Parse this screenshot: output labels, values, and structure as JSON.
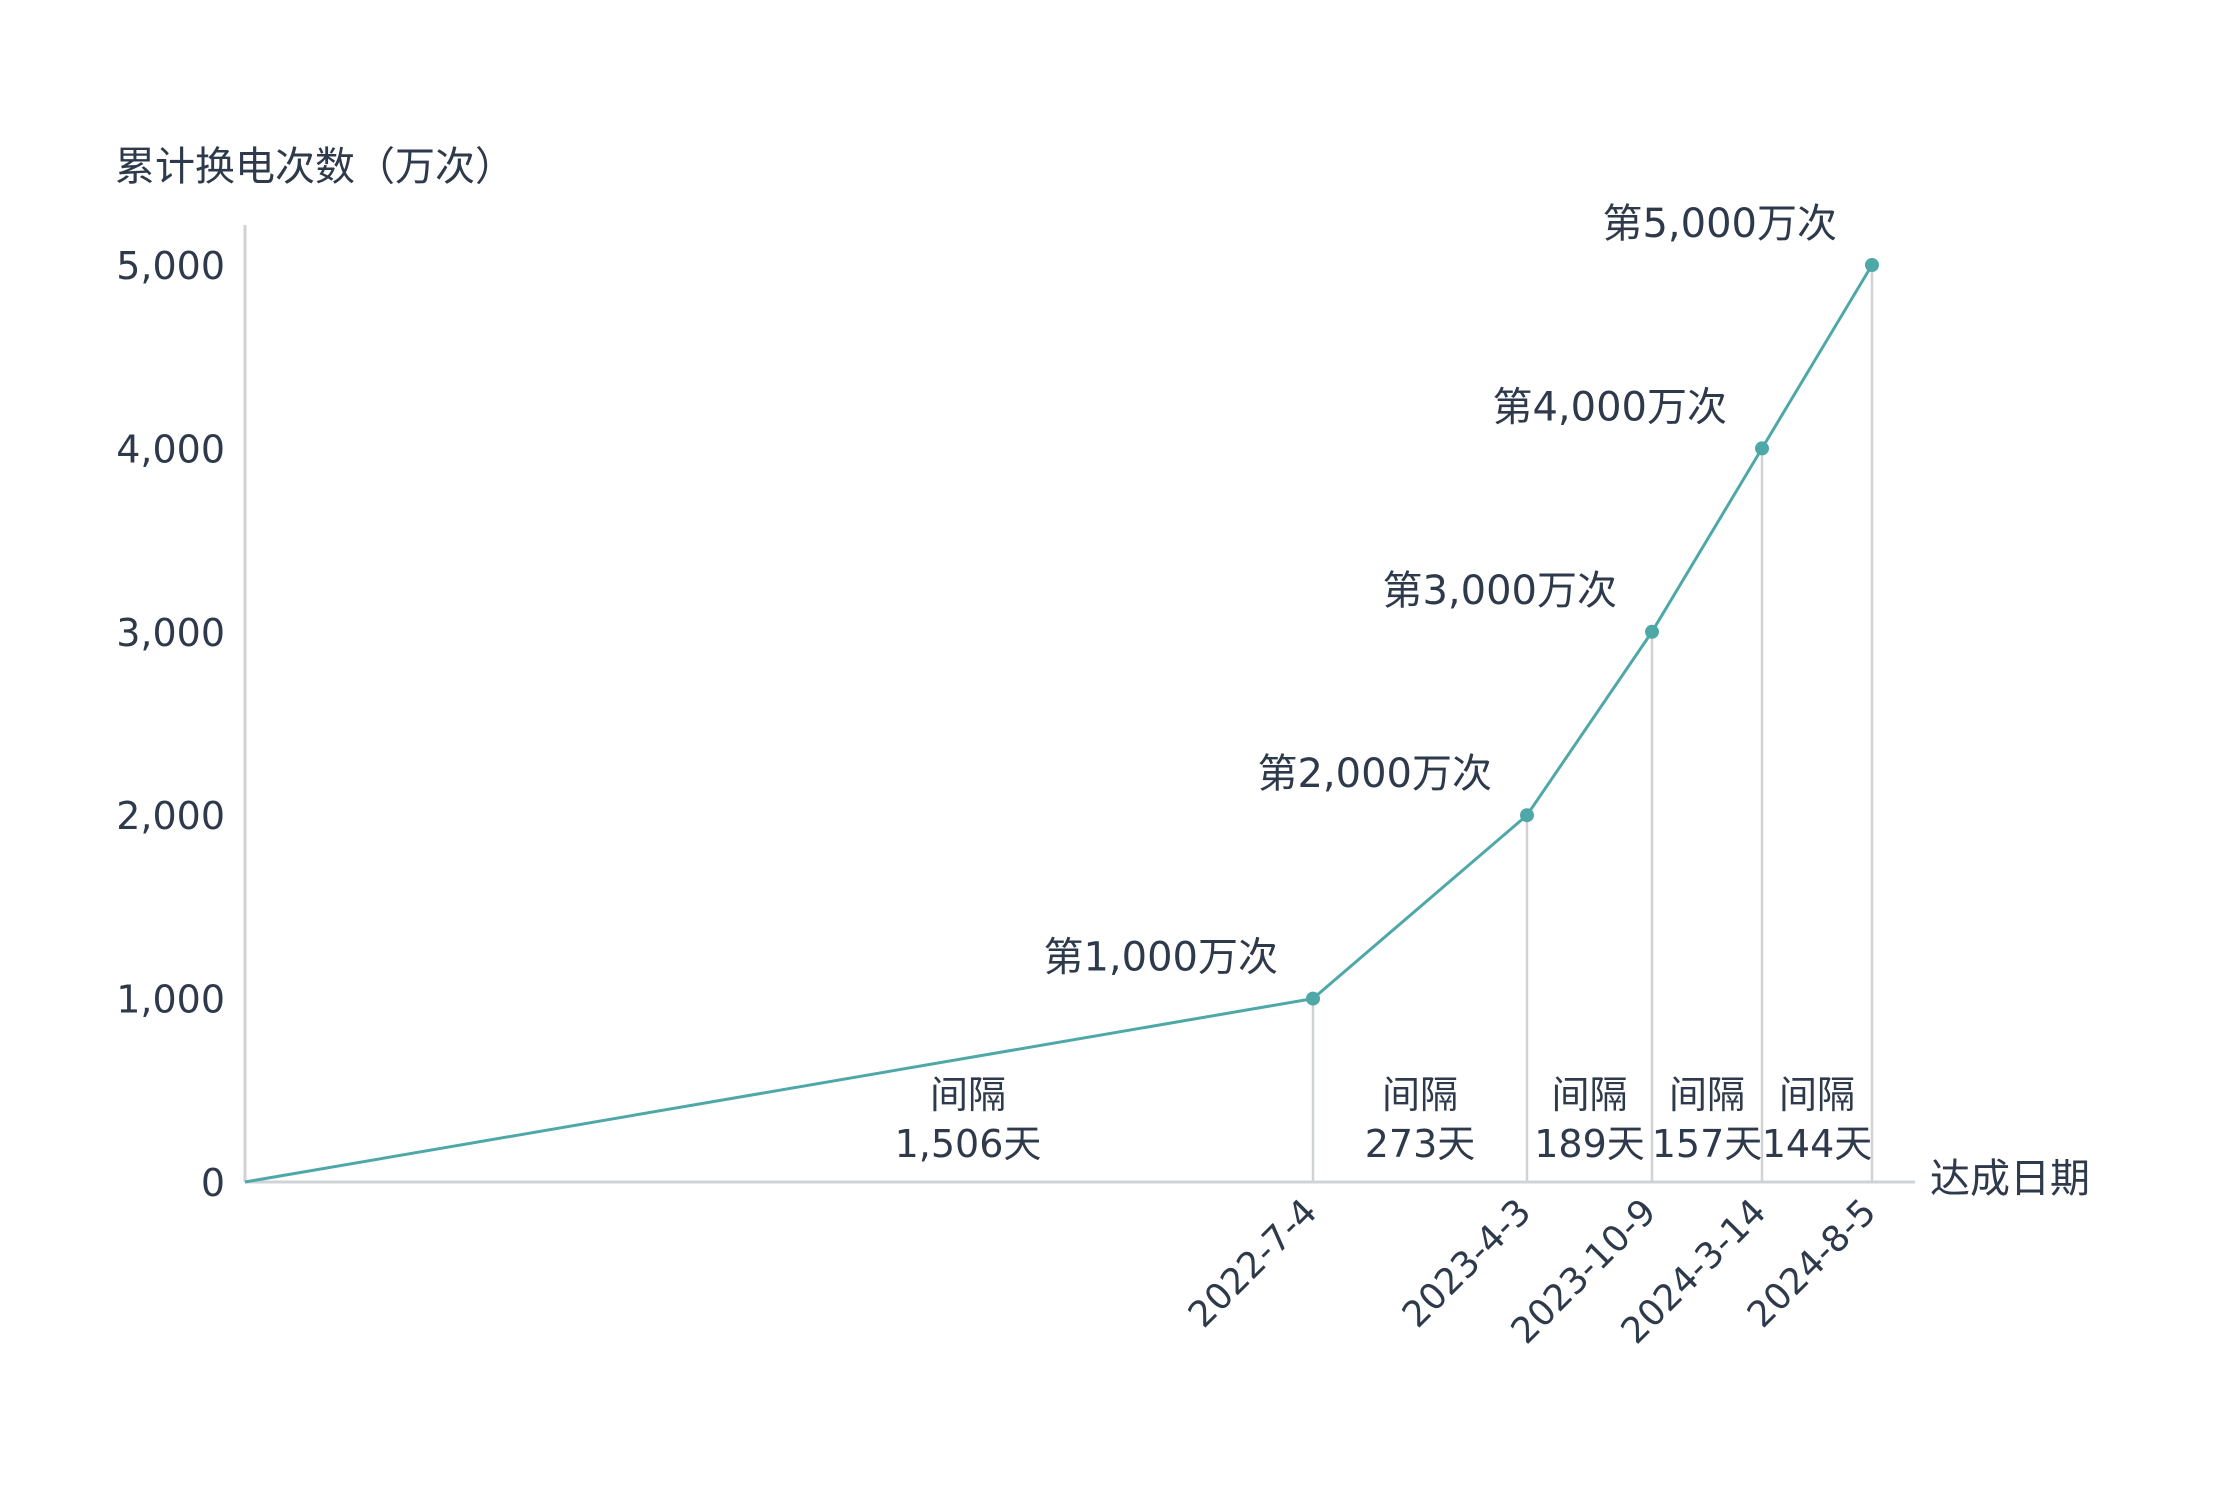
{
  "chart_data": {
    "type": "line",
    "ylabel": "累计换电次数（万次）",
    "xlabel": "达成日期",
    "ylim": [
      0,
      5000
    ],
    "yticks": [
      "0",
      "1,000",
      "2,000",
      "3,000",
      "4,000",
      "5,000"
    ],
    "accent_color": "#4fa8a8",
    "grid": false,
    "series": [
      {
        "points": [
          {
            "x": "2018-05-20",
            "y": 0
          },
          {
            "x": "2022-07-04",
            "y": 1000
          },
          {
            "x": "2023-04-03",
            "y": 2000
          },
          {
            "x": "2023-10-09",
            "y": 3000
          },
          {
            "x": "2024-03-14",
            "y": 4000
          },
          {
            "x": "2024-08-05",
            "y": 5000
          }
        ]
      }
    ],
    "milestones": [
      {
        "date_label": "2022-7-4",
        "label": "第1,000万次",
        "gap_label": "间隔",
        "gap_days": "1,506天"
      },
      {
        "date_label": "2023-4-3",
        "label": "第2,000万次",
        "gap_label": "间隔",
        "gap_days": "273天"
      },
      {
        "date_label": "2023-10-9",
        "label": "第3,000万次",
        "gap_label": "间隔",
        "gap_days": "189天"
      },
      {
        "date_label": "2024-3-14",
        "label": "第4,000万次",
        "gap_label": "间隔",
        "gap_days": "157天"
      },
      {
        "date_label": "2024-8-5",
        "label": "第5,000万次",
        "gap_label": "间隔",
        "gap_days": "144天"
      }
    ]
  }
}
